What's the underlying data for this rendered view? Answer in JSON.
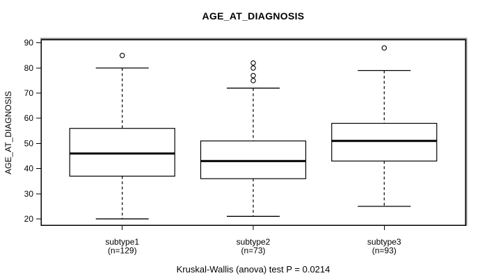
{
  "chart_data": {
    "type": "boxplot",
    "title": "AGE_AT_DIAGNOSIS",
    "ylabel": "AGE_AT_DIAGNOSIS",
    "xlabel": "",
    "caption": "Kruskal-Wallis (anova) test P = 0.0214",
    "grid": false,
    "legend": "none",
    "yticks": [
      20,
      30,
      40,
      50,
      60,
      70,
      80,
      90
    ],
    "ylim": [
      17.5,
      91.3
    ],
    "xlim": [
      0.38,
      3.62
    ],
    "categories": [
      "subtype1",
      "subtype2",
      "subtype3"
    ],
    "groups": [
      {
        "label": "subtype1",
        "sublabel": "(n=129)",
        "n": 129,
        "low": 20,
        "q1": 37,
        "median": 46,
        "q3": 56,
        "high": 80,
        "outliers": [
          85
        ]
      },
      {
        "label": "subtype2",
        "sublabel": "(n=73)",
        "n": 73,
        "low": 21,
        "q1": 36,
        "median": 43,
        "q3": 51,
        "high": 72,
        "outliers": [
          82,
          80,
          77,
          75
        ]
      },
      {
        "label": "subtype3",
        "sublabel": "(n=93)",
        "n": 93,
        "low": 25,
        "q1": 43,
        "median": 51,
        "q3": 58,
        "high": 79,
        "outliers": [
          88
        ]
      }
    ],
    "colors": {
      "line": "#000000",
      "box_fill": "#ffffff",
      "frame_shadow": "#8c8c8c",
      "background": "#ffffff"
    }
  }
}
